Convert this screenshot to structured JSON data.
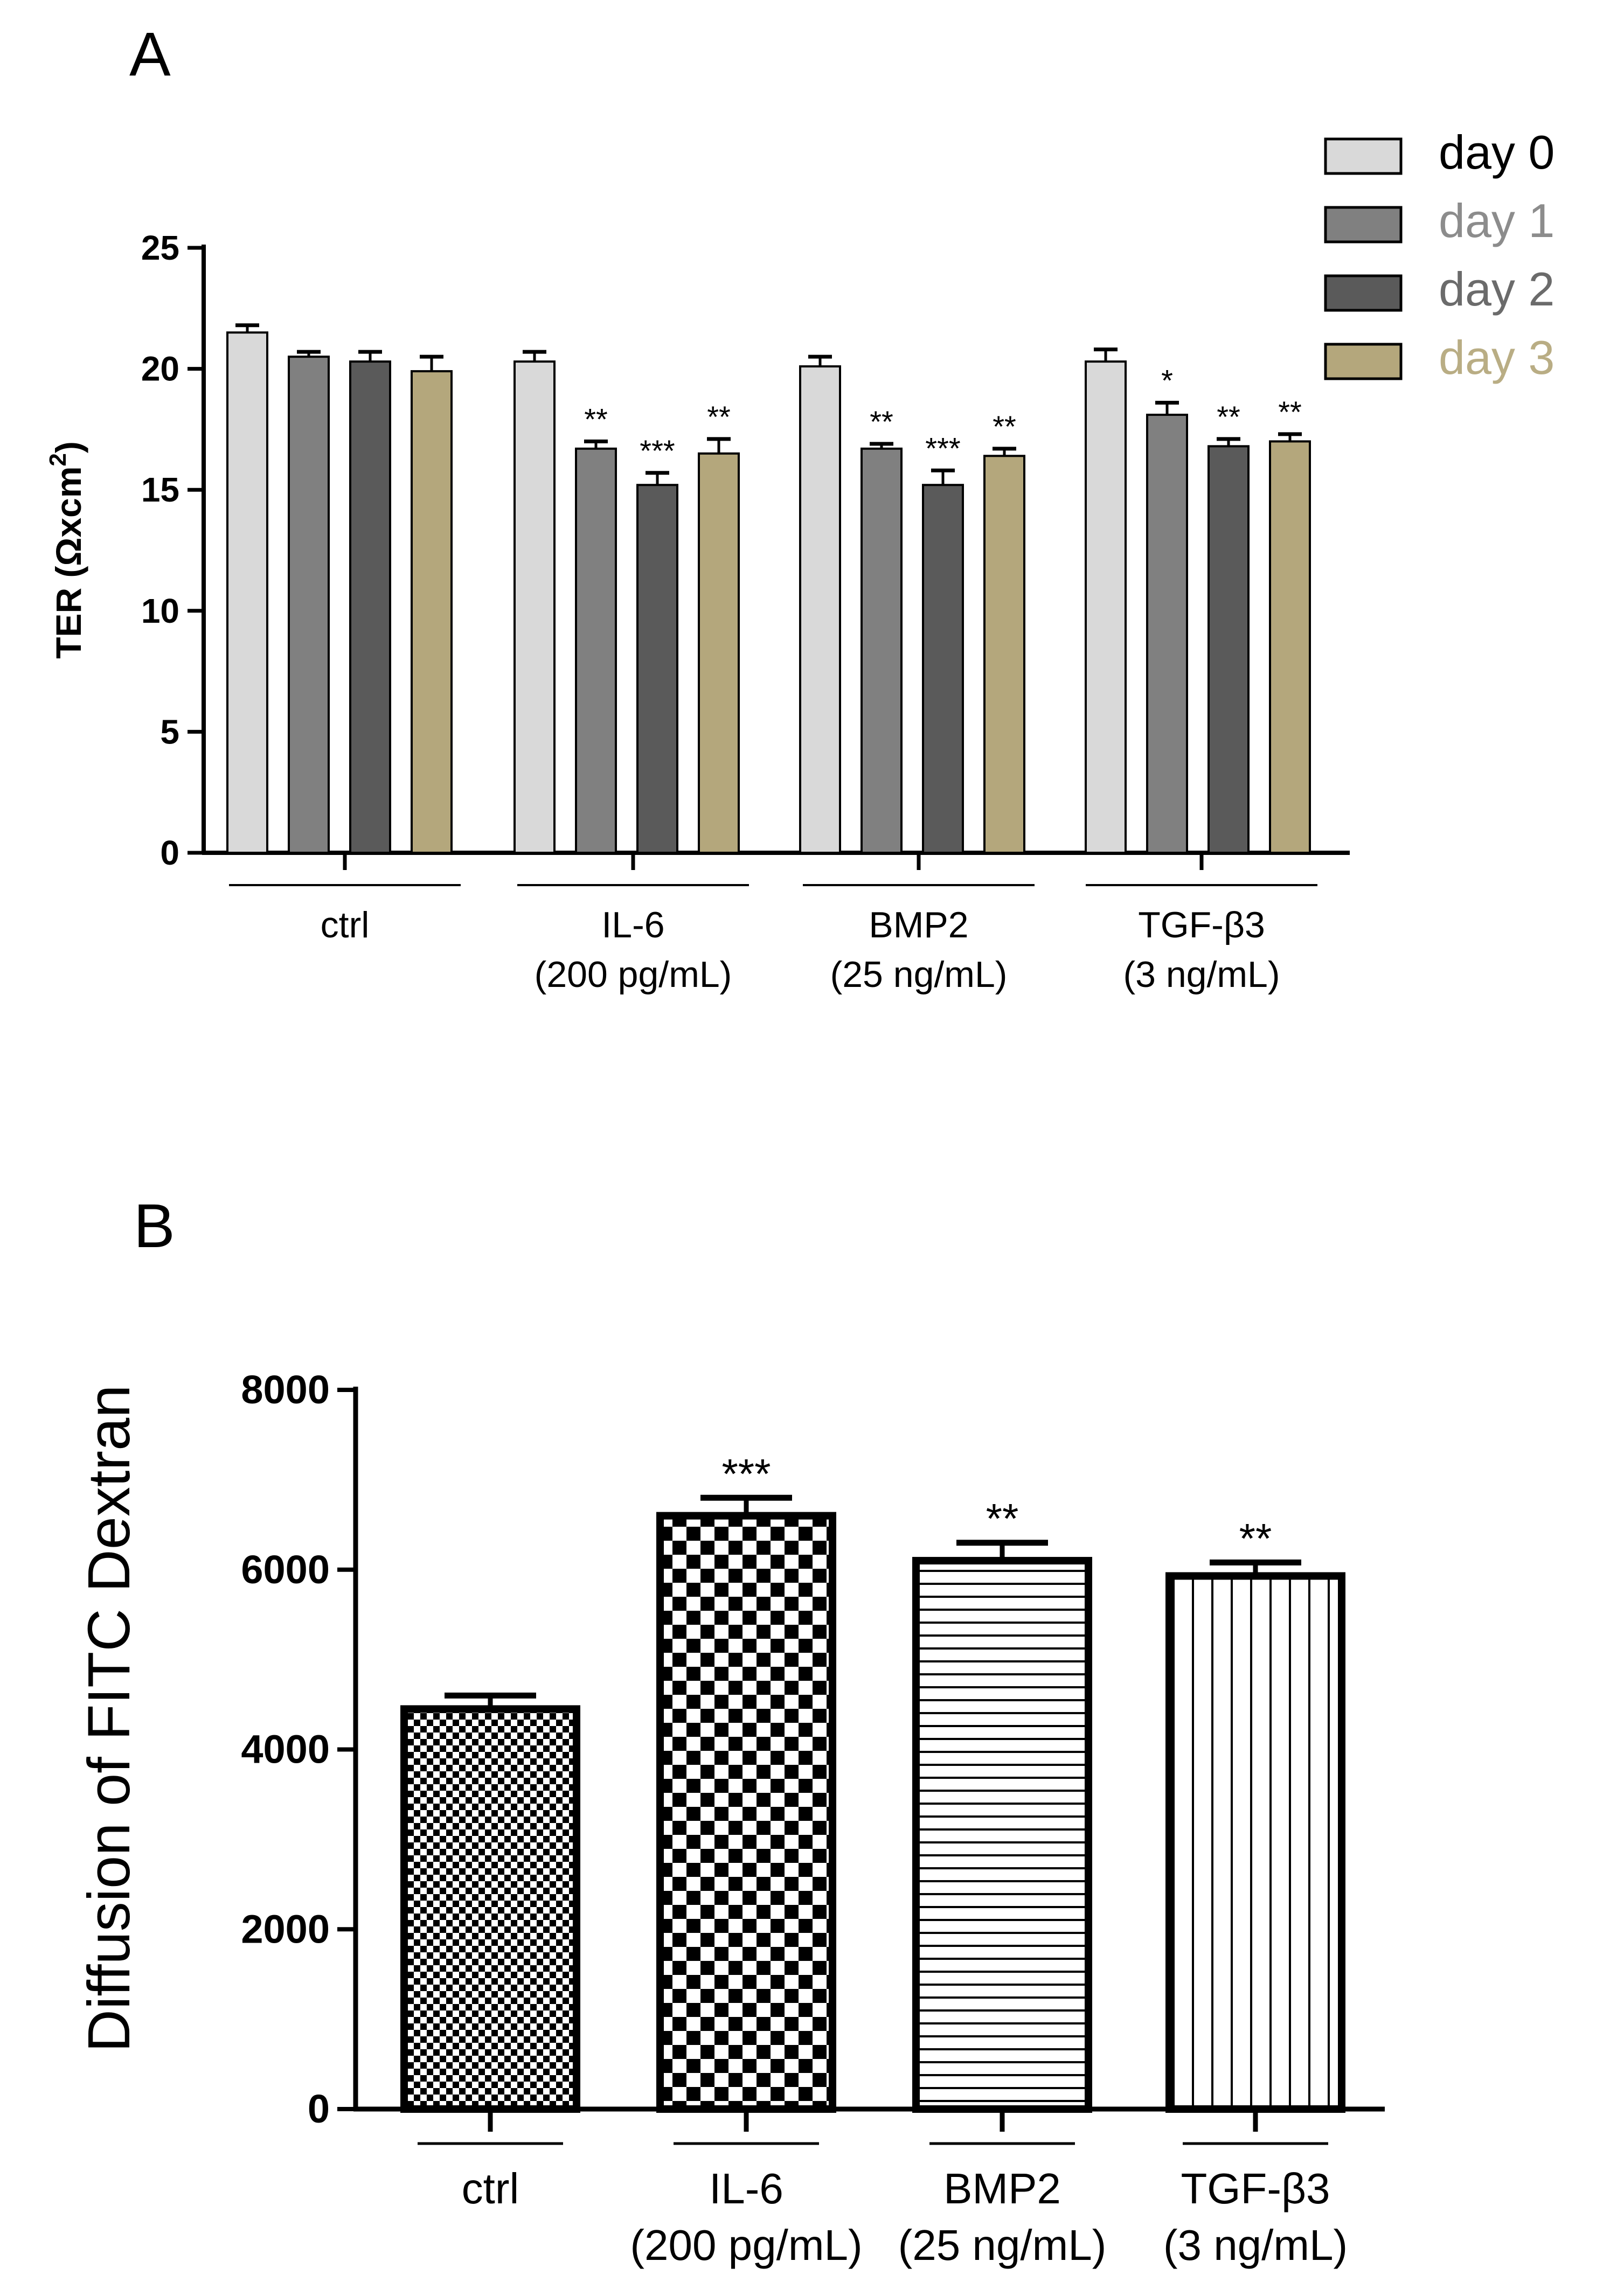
{
  "panels": {
    "a": {
      "letter": "A"
    },
    "b": {
      "letter": "B"
    }
  },
  "chart_data": [
    {
      "type": "bar",
      "panel": "A",
      "ylabel": "TER (Ωxcm²)",
      "ylabel_parts": {
        "main": "TER (Ωxcm",
        "sup": "2",
        "end": ")"
      },
      "ylim": [
        0,
        25
      ],
      "yticks": [
        0,
        5,
        10,
        15,
        20,
        25
      ],
      "grid": false,
      "legend_position": "top-right",
      "categories": [
        {
          "lines": [
            "ctrl"
          ]
        },
        {
          "lines": [
            "IL-6",
            "(200 pg/mL)"
          ]
        },
        {
          "lines": [
            "BMP2",
            "(25 ng/mL)"
          ]
        },
        {
          "lines": [
            "TGF-β3",
            "(3 ng/mL)"
          ]
        }
      ],
      "series": [
        {
          "name": "day 0",
          "color": "#d9d9d9",
          "label_color": "#000000",
          "values": [
            21.5,
            20.3,
            20.1,
            20.3
          ],
          "errors": [
            0.3,
            0.4,
            0.4,
            0.5
          ],
          "significance": [
            "",
            "",
            "",
            ""
          ]
        },
        {
          "name": "day 1",
          "color": "#808080",
          "label_color": "#8c8c8c",
          "values": [
            20.5,
            16.7,
            16.7,
            18.1
          ],
          "errors": [
            0.2,
            0.3,
            0.2,
            0.5
          ],
          "significance": [
            "",
            "**",
            "**",
            "*"
          ]
        },
        {
          "name": "day 2",
          "color": "#5a5a5a",
          "label_color": "#6b6b6b",
          "values": [
            20.3,
            15.2,
            15.2,
            16.8
          ],
          "errors": [
            0.4,
            0.5,
            0.6,
            0.3
          ],
          "significance": [
            "",
            "***",
            "***",
            "**"
          ]
        },
        {
          "name": "day 3",
          "color": "#b4a77c",
          "label_color": "#b9ad84",
          "values": [
            19.9,
            16.5,
            16.4,
            17.0
          ],
          "errors": [
            0.6,
            0.6,
            0.3,
            0.3
          ],
          "significance": [
            "",
            "**",
            "**",
            "**"
          ]
        }
      ]
    },
    {
      "type": "bar",
      "panel": "B",
      "ylabel": "Diffusion of FITC Dextran",
      "ylim": [
        0,
        8000
      ],
      "yticks": [
        0,
        2000,
        4000,
        6000,
        8000
      ],
      "grid": false,
      "categories": [
        {
          "lines": [
            "ctrl"
          ]
        },
        {
          "lines": [
            "IL-6",
            "(200 pg/mL)"
          ]
        },
        {
          "lines": [
            "BMP2",
            "(25 ng/mL)"
          ]
        },
        {
          "lines": [
            "TGF-β3",
            "(3 ng/mL)"
          ]
        }
      ],
      "patterns": [
        "fine-checker",
        "coarse-checker",
        "horizontal-lines",
        "vertical-lines"
      ],
      "values": [
        4450,
        6600,
        6100,
        5930
      ],
      "errors": [
        150,
        200,
        200,
        150
      ],
      "significance": [
        "",
        "***",
        "**",
        "**"
      ]
    }
  ]
}
